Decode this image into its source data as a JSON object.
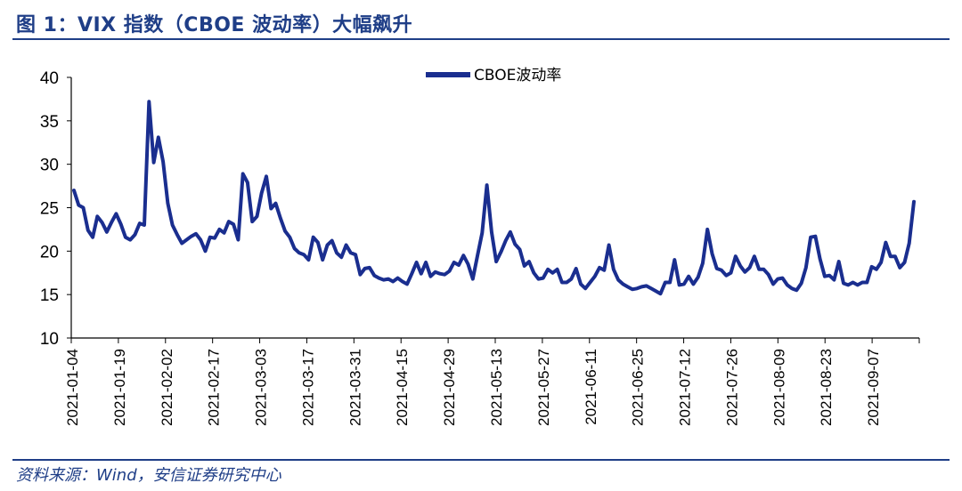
{
  "header": {
    "title": "图 1：VIX 指数（CBOE 波动率）大幅飙升"
  },
  "footer": {
    "source": "资料来源：Wind，安信证券研究中心"
  },
  "colors": {
    "series": "#1a2e8f",
    "title": "#1f3e87"
  },
  "chart_data": {
    "type": "line",
    "title": "",
    "xlabel": "",
    "ylabel": "",
    "ylim": [
      10,
      40
    ],
    "yticks": [
      10,
      15,
      20,
      25,
      30,
      35,
      40
    ],
    "grid": false,
    "legend_position": "top-center",
    "xtick_labels": [
      "2021-01-04",
      "2021-01-19",
      "2021-02-02",
      "2021-02-17",
      "2021-03-03",
      "2021-03-17",
      "2021-03-31",
      "2021-04-15",
      "2021-04-29",
      "2021-05-13",
      "2021-05-27",
      "2021-06-11",
      "2021-06-25",
      "2021-07-12",
      "2021-07-26",
      "2021-08-09",
      "2021-08-23",
      "2021-09-07"
    ],
    "series": [
      {
        "name": "CBOE波动率",
        "values": [
          27.0,
          25.3,
          25.0,
          22.4,
          21.6,
          24.0,
          23.3,
          22.2,
          23.3,
          24.3,
          23.1,
          21.6,
          21.3,
          21.9,
          23.2,
          23.0,
          37.2,
          30.2,
          33.1,
          30.3,
          25.5,
          23.0,
          21.9,
          20.9,
          21.3,
          21.7,
          22.0,
          21.3,
          20.0,
          21.6,
          21.5,
          22.5,
          22.1,
          23.4,
          23.1,
          21.3,
          28.9,
          27.9,
          23.4,
          24.0,
          26.7,
          28.6,
          24.9,
          25.5,
          23.8,
          22.3,
          21.6,
          20.3,
          19.8,
          19.6,
          19.0,
          21.6,
          21.0,
          19.0,
          20.7,
          21.2,
          19.8,
          19.3,
          20.7,
          19.8,
          19.6,
          17.3,
          18.0,
          18.1,
          17.2,
          16.9,
          16.7,
          16.8,
          16.5,
          16.9,
          16.5,
          16.2,
          17.4,
          18.7,
          17.4,
          18.7,
          17.1,
          17.6,
          17.4,
          17.3,
          17.7,
          18.7,
          18.4,
          19.5,
          18.5,
          16.8,
          19.5,
          22.1,
          27.6,
          22.2,
          18.8,
          19.9,
          21.2,
          22.2,
          20.8,
          20.2,
          18.3,
          18.8,
          17.5,
          16.8,
          16.9,
          17.9,
          17.5,
          17.9,
          16.4,
          16.4,
          16.8,
          18.0,
          16.2,
          15.7,
          16.4,
          17.1,
          18.1,
          17.8,
          20.7,
          17.9,
          16.7,
          16.2,
          15.9,
          15.6,
          15.7,
          15.9,
          16.0,
          15.7,
          15.4,
          15.1,
          16.4,
          16.4,
          19.0,
          16.1,
          16.2,
          17.1,
          16.2,
          17.0,
          18.6,
          22.5,
          19.7,
          18.0,
          17.8,
          17.2,
          17.5,
          19.4,
          18.3,
          17.6,
          18.1,
          19.4,
          17.9,
          17.9,
          17.3,
          16.2,
          16.8,
          16.9,
          16.1,
          15.7,
          15.5,
          16.3,
          18.1,
          21.6,
          21.7,
          19.1,
          17.1,
          17.2,
          16.7,
          18.8,
          16.3,
          16.1,
          16.4,
          16.1,
          16.4,
          16.4,
          18.2,
          17.9,
          18.7,
          21.0,
          19.4,
          19.4,
          18.1,
          18.7,
          20.9,
          25.7
        ]
      }
    ]
  }
}
